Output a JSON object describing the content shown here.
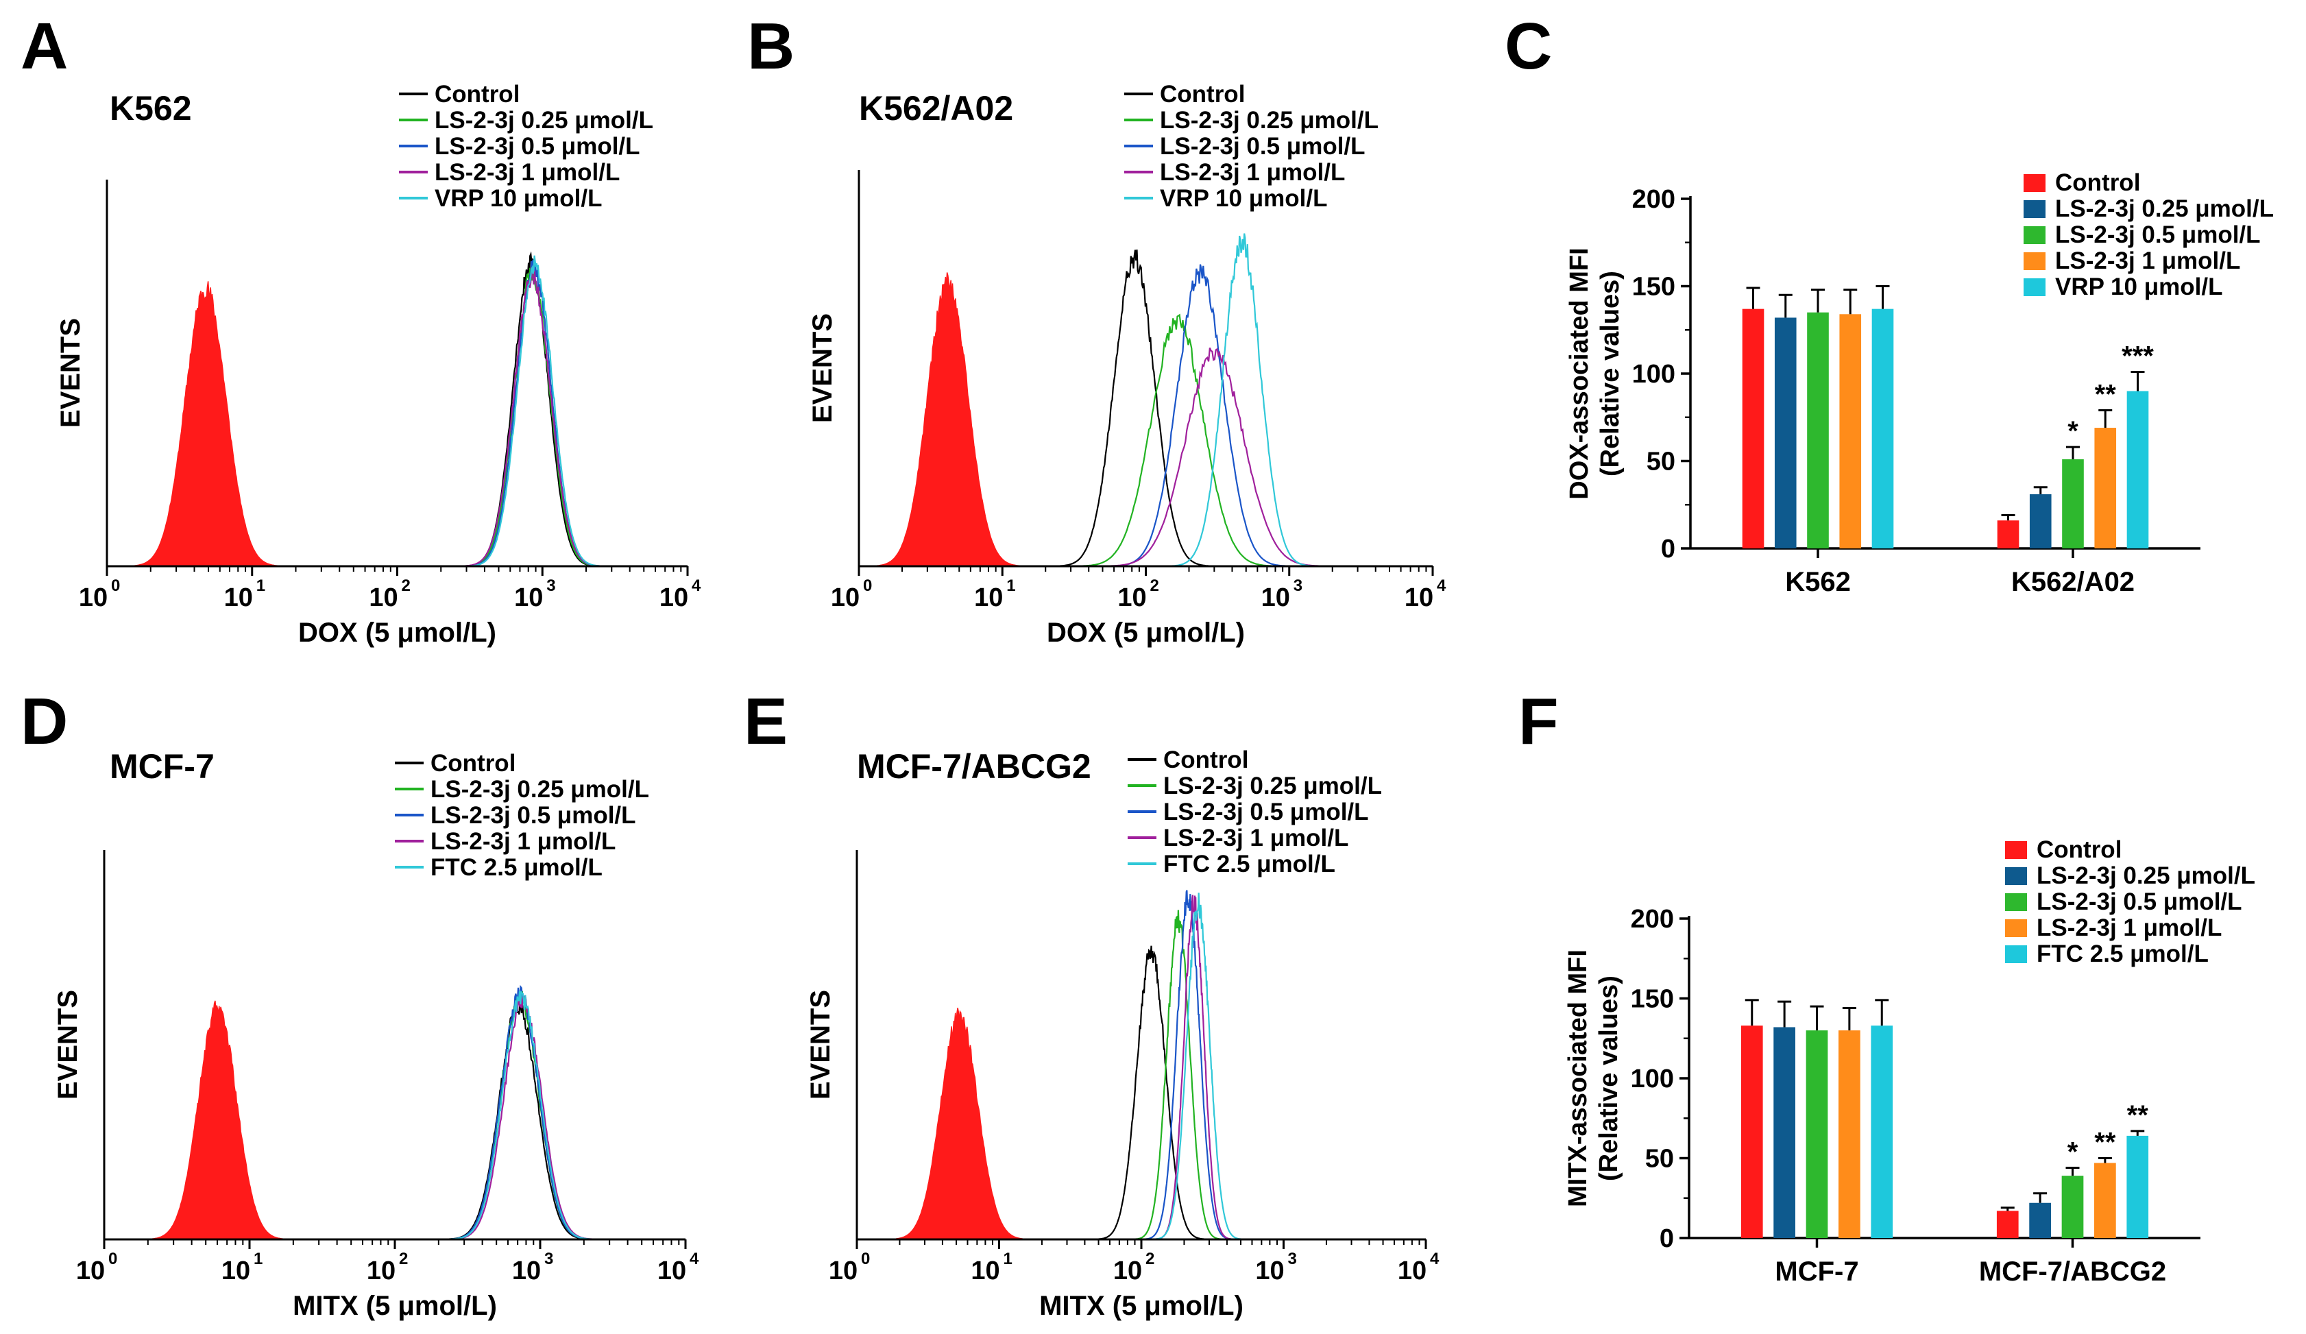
{
  "colors": {
    "unstained_fill": "#ff1a1a",
    "control_line": "#000000",
    "ls025_line": "#22b322",
    "ls05_line": "#1a55c8",
    "ls1_line": "#a0209c",
    "ref_line": "#30c8d8",
    "bar_control": "#ff1a1a",
    "bar_ls025": "#0e5a8e",
    "bar_ls05": "#2eb82e",
    "bar_ls1": "#ff8c1a",
    "bar_ref": "#1ec8dc"
  },
  "panels": [
    {
      "letter": "A",
      "type": "histogram",
      "cell_line": "K562",
      "xlabel": "DOX (5 μmol/L)",
      "ylabel": "EVENTS",
      "xticks": [
        "10",
        "10",
        "10",
        "10",
        "10"
      ],
      "xtick_exps": [
        "0",
        "1",
        "2",
        "3",
        "4"
      ],
      "legend": [
        "Control",
        "LS-2-3j 0.25 μmol/L",
        "LS-2-3j 0.5 μmol/L",
        "LS-2-3j 1 μmol/L",
        "VRP 10 μmol/L"
      ],
      "unstained": {
        "center_log": 0.68,
        "width": 0.14,
        "height": 0.72
      },
      "curves": [
        {
          "center_log": 2.92,
          "width": 0.12,
          "height": 0.78
        },
        {
          "center_log": 2.93,
          "width": 0.12,
          "height": 0.76
        },
        {
          "center_log": 2.94,
          "width": 0.12,
          "height": 0.77
        },
        {
          "center_log": 2.93,
          "width": 0.125,
          "height": 0.75
        },
        {
          "center_log": 2.95,
          "width": 0.12,
          "height": 0.78
        }
      ]
    },
    {
      "letter": "B",
      "type": "histogram",
      "cell_line": "K562/A02",
      "xlabel": "DOX (5 μmol/L)",
      "ylabel": "EVENTS",
      "xticks": [
        "10",
        "10",
        "10",
        "10",
        "10"
      ],
      "xtick_exps": [
        "0",
        "1",
        "2",
        "3",
        "4"
      ],
      "legend": [
        "Control",
        "LS-2-3j 0.25 μmol/L",
        "LS-2-3j 0.5 μmol/L",
        "LS-2-3j 1 μmol/L",
        "VRP 10 μmol/L"
      ],
      "unstained": {
        "center_log": 0.62,
        "width": 0.14,
        "height": 0.72
      },
      "curves": [
        {
          "center_log": 1.92,
          "width": 0.14,
          "height": 0.78
        },
        {
          "center_log": 2.22,
          "width": 0.18,
          "height": 0.62
        },
        {
          "center_log": 2.38,
          "width": 0.16,
          "height": 0.74
        },
        {
          "center_log": 2.48,
          "width": 0.2,
          "height": 0.54
        },
        {
          "center_log": 2.67,
          "width": 0.13,
          "height": 0.82
        }
      ]
    },
    {
      "letter": "D",
      "type": "histogram",
      "cell_line": "MCF-7",
      "xlabel": "MITX (5 μmol/L)",
      "ylabel": "EVENTS",
      "xticks": [
        "10",
        "10",
        "10",
        "10",
        "10"
      ],
      "xtick_exps": [
        "0",
        "1",
        "2",
        "3",
        "4"
      ],
      "legend": [
        "Control",
        "LS-2-3j 0.25 μmol/L",
        "LS-2-3j 0.5 μmol/L",
        "LS-2-3j 1 μmol/L",
        "FTC 2.5 μmol/L"
      ],
      "unstained": {
        "center_log": 0.78,
        "width": 0.13,
        "height": 0.6
      },
      "curves": [
        {
          "center_log": 2.85,
          "width": 0.13,
          "height": 0.6
        },
        {
          "center_log": 2.86,
          "width": 0.13,
          "height": 0.62
        },
        {
          "center_log": 2.86,
          "width": 0.13,
          "height": 0.63
        },
        {
          "center_log": 2.88,
          "width": 0.13,
          "height": 0.61
        },
        {
          "center_log": 2.87,
          "width": 0.13,
          "height": 0.62
        }
      ]
    },
    {
      "letter": "E",
      "type": "histogram",
      "cell_line": "MCF-7/ABCG2",
      "xlabel": "MITX (5 μmol/L)",
      "ylabel": "EVENTS",
      "xticks": [
        "10",
        "10",
        "10",
        "10",
        "10"
      ],
      "xtick_exps": [
        "0",
        "1",
        "2",
        "3",
        "4"
      ],
      "legend": [
        "Control",
        "LS-2-3j 0.25 μmol/L",
        "LS-2-3j 0.5 μmol/L",
        "LS-2-3j 1 μmol/L",
        "FTC 2.5 μmol/L"
      ],
      "unstained": {
        "center_log": 0.72,
        "width": 0.13,
        "height": 0.58
      },
      "curves": [
        {
          "center_log": 2.07,
          "width": 0.1,
          "height": 0.74
        },
        {
          "center_log": 2.26,
          "width": 0.08,
          "height": 0.82
        },
        {
          "center_log": 2.33,
          "width": 0.08,
          "height": 0.88
        },
        {
          "center_log": 2.37,
          "width": 0.07,
          "height": 0.86
        },
        {
          "center_log": 2.4,
          "width": 0.08,
          "height": 0.86
        }
      ]
    }
  ],
  "chart_data": [
    {
      "letter": "C",
      "type": "bar",
      "ylabel": "DOX-associated MFI",
      "ylabel2": "(Relative values)",
      "ylim": [
        0,
        200
      ],
      "yticks": [
        0,
        50,
        100,
        150,
        200
      ],
      "categories": [
        "K562",
        "K562/A02"
      ],
      "series": [
        {
          "name": "Control",
          "values": [
            137,
            16
          ],
          "errors": [
            12,
            3
          ],
          "sig": [
            "",
            ""
          ]
        },
        {
          "name": "LS-2-3j 0.25 μmol/L",
          "values": [
            132,
            31
          ],
          "errors": [
            13,
            4
          ],
          "sig": [
            "",
            ""
          ]
        },
        {
          "name": "LS-2-3j 0.5 μmol/L",
          "values": [
            135,
            51
          ],
          "errors": [
            13,
            7
          ],
          "sig": [
            "",
            "*"
          ]
        },
        {
          "name": "LS-2-3j 1 μmol/L",
          "values": [
            134,
            69
          ],
          "errors": [
            14,
            10
          ],
          "sig": [
            "",
            "**"
          ]
        },
        {
          "name": "VRP 10 μmol/L",
          "values": [
            137,
            90
          ],
          "errors": [
            13,
            11
          ],
          "sig": [
            "",
            "***"
          ]
        }
      ]
    },
    {
      "letter": "F",
      "type": "bar",
      "ylabel": "MITX-associated MFI",
      "ylabel2": "(Relative values)",
      "ylim": [
        0,
        200
      ],
      "yticks": [
        0,
        50,
        100,
        150,
        200
      ],
      "categories": [
        "MCF-7",
        "MCF-7/ABCG2"
      ],
      "series": [
        {
          "name": "Control",
          "values": [
            133,
            17
          ],
          "errors": [
            16,
            2
          ],
          "sig": [
            "",
            ""
          ]
        },
        {
          "name": "LS-2-3j 0.25 μmol/L",
          "values": [
            132,
            22
          ],
          "errors": [
            16,
            6
          ],
          "sig": [
            "",
            ""
          ]
        },
        {
          "name": "LS-2-3j 0.5 μmol/L",
          "values": [
            130,
            39
          ],
          "errors": [
            15,
            5
          ],
          "sig": [
            "",
            "*"
          ]
        },
        {
          "name": "LS-2-3j 1 μmol/L",
          "values": [
            130,
            47
          ],
          "errors": [
            14,
            3
          ],
          "sig": [
            "",
            "**"
          ]
        },
        {
          "name": "FTC 2.5 μmol/L",
          "values": [
            133,
            64
          ],
          "errors": [
            16,
            3
          ],
          "sig": [
            "",
            "**"
          ]
        }
      ]
    }
  ]
}
